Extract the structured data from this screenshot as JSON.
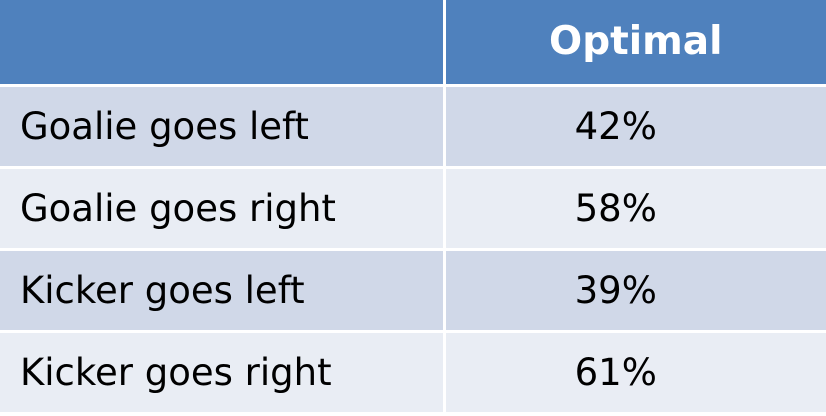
{
  "table": {
    "header": {
      "corner": "",
      "column": "Optimal"
    },
    "rows": [
      {
        "label": "Goalie goes left",
        "value": "42%"
      },
      {
        "label": "Goalie goes right",
        "value": "58%"
      },
      {
        "label": "Kicker goes left",
        "value": "39%"
      },
      {
        "label": "Kicker goes right",
        "value": "61%"
      }
    ]
  },
  "colors": {
    "header_bg": "#4f81bd",
    "row_odd_bg": "#d0d8e8",
    "row_even_bg": "#e9edf4",
    "header_text": "#ffffff",
    "body_text": "#000000"
  }
}
